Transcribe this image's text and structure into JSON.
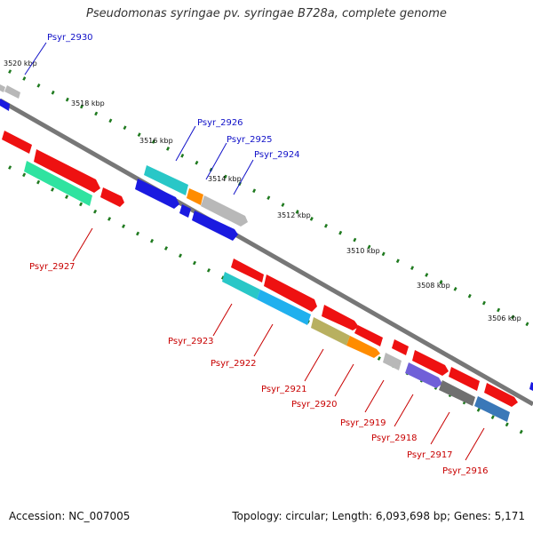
{
  "title": "Pseudomonas syringae pv. syringae B728a, complete genome",
  "accession_text": "Accession: NC_007005",
  "topology_text": "Topology: circular; Length: 6,093,698 bp; Genes: 5,171",
  "scale_labels": [
    "3520 kbp",
    "3518 kbp",
    "3516 kbp",
    "3514 kbp",
    "3512 kbp",
    "3510 kbp",
    "3508 kbp",
    "3506 kbp"
  ],
  "forward_gene_labels": [
    "Psyr_2930",
    "Psyr_2926",
    "Psyr_2925",
    "Psyr_2924"
  ],
  "reverse_gene_labels": [
    "Psyr_2927",
    "Psyr_2923",
    "Psyr_2922",
    "Psyr_2921",
    "Psyr_2920",
    "Psyr_2919",
    "Psyr_2918",
    "Psyr_2917",
    "Psyr_2916"
  ],
  "colors": {
    "backbone": "#777777",
    "forward_label": "#1010c8",
    "reverse_label": "#c80000",
    "tick": "#1f7a1f",
    "red_gene": "#ee1111",
    "blue_gene": "#1a1ae0",
    "gray_gene": "#b8b8b8",
    "cyan_gene": "#29c7c7",
    "sky_gene": "#20b0ee",
    "orange_gene": "#ff8c00",
    "green_gene": "#2fe3a0",
    "olive_gene": "#b8b060",
    "purple_gene": "#7060d8",
    "darkgray_gene": "#707070",
    "steelblue_gene": "#3a78b8"
  }
}
